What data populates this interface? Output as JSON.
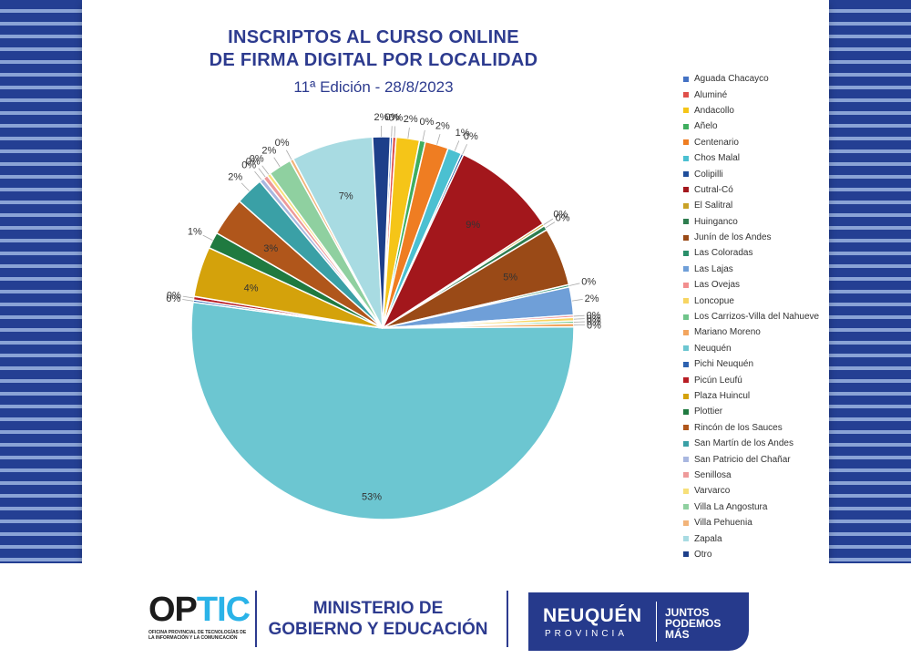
{
  "header": {
    "title_line1": "INSCRIPTOS AL CURSO ONLINE",
    "title_line2": "DE FIRMA DIGITAL POR LOCALIDAD",
    "subtitle": "11ª Edición - 28/8/2023"
  },
  "chart_data": {
    "type": "pie",
    "title": "INSCRIPTOS AL CURSO ONLINE DE FIRMA DIGITAL POR LOCALIDAD",
    "subtitle": "11ª Edición - 28/8/2023",
    "legend_position": "right",
    "categories": [
      "Aguada Chacayco",
      "Aluminé",
      "Andacollo",
      "Añelo",
      "Centenario",
      "Chos Malal",
      "Colipilli",
      "Cutral-Có",
      "El Salitral",
      "Huinganco",
      "Junín de los Andes",
      "Las Coloradas",
      "Las Lajas",
      "Las Ovejas",
      "Loncopue",
      "Los Carrizos-Villa del Nahueve",
      "Mariano Moreno",
      "Neuquén",
      "Pichi Neuquén",
      "Picún Leufú",
      "Plaza Huincul",
      "Plottier",
      "Rincón de los Sauces",
      "San Martín de los Andes",
      "San Patricio del Chañar",
      "Senillosa",
      "Varvarco",
      "Villa La Angostura",
      "Villa Pehuenia",
      "Zapala",
      "Otro"
    ],
    "values": [
      0.2,
      0.3,
      2,
      0.5,
      2,
      1.2,
      0.2,
      9,
      0.2,
      0.4,
      5,
      0.2,
      2.4,
      0.2,
      0.3,
      0.2,
      0.3,
      53,
      0.2,
      0.3,
      4.3,
      1.4,
      3.3,
      2.4,
      0.4,
      0.4,
      0.3,
      2,
      0.3,
      7,
      1.5
    ],
    "labels": [
      "0%",
      "0%",
      "2%",
      "0%",
      "2%",
      "1%",
      "0%",
      "9%",
      "0%",
      "0%",
      "5%",
      "0%",
      "2%",
      "0%",
      "0%",
      "0%",
      "0%",
      "53%",
      "0%",
      "0%",
      "4%",
      "1%",
      "3%",
      "2%",
      "0%",
      "0%",
      "0%",
      "2%",
      "0%",
      "7%",
      "2%"
    ],
    "colors": [
      "#4472c4",
      "#e0504a",
      "#f5c518",
      "#3fae5f",
      "#ef7d22",
      "#4bc0d1",
      "#1f4e9b",
      "#a3171c",
      "#c9a227",
      "#2e7d4f",
      "#9a4a17",
      "#2a8f6a",
      "#6f9fd8",
      "#f28e8e",
      "#f7d562",
      "#6fc48a",
      "#f3a55e",
      "#6cc6d1",
      "#2d62b0",
      "#b81d24",
      "#d4a20b",
      "#1f7a40",
      "#b0561b",
      "#3aa0a6",
      "#a9b7e0",
      "#ee9a9a",
      "#f7e07a",
      "#8fd0a0",
      "#f2b47a",
      "#a8dbe2",
      "#1d3f8a"
    ]
  },
  "footer": {
    "optic_op": "OP",
    "optic_tic": "TIC",
    "optic_sub": "OFICINA PROVINCIAL DE TECNOLOGÍAS DE LA INFORMACIÓN Y LA COMUNICACIÓN",
    "ministry_line1": "MINISTERIO DE",
    "ministry_line2": "GOBIERNO Y EDUCACIÓN",
    "brand_name": "NEUQUÉN",
    "brand_province": "PROVINCIA",
    "slogan_line1": "JUNTOS",
    "slogan_line2": "PODEMOS",
    "slogan_line3": "MÁS"
  }
}
